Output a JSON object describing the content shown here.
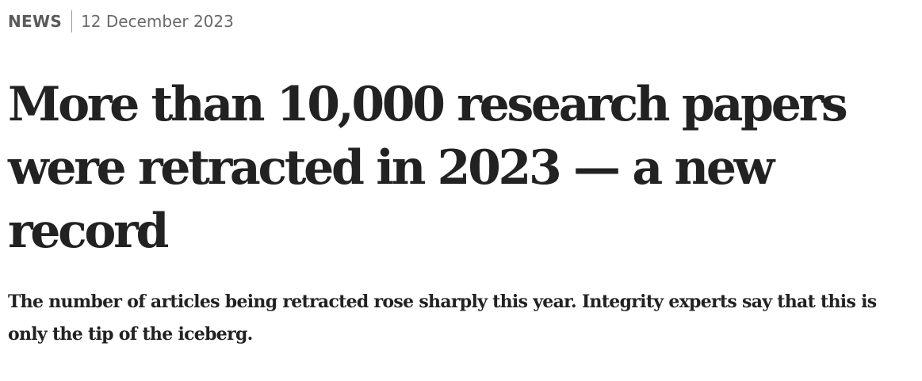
{
  "article": {
    "type": "NEWS",
    "date": "12 December 2023",
    "headline": "More than 10,000 research papers were retracted in 2023 — a new record",
    "standfirst": "The number of articles being retracted rose sharply this year. Integrity experts say that this is only the tip of the iceberg."
  }
}
